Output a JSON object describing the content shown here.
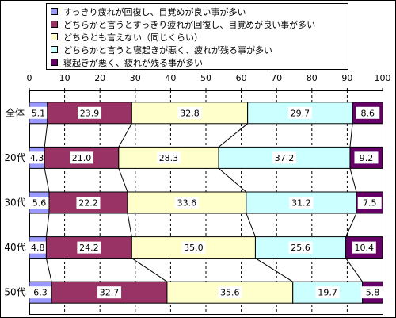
{
  "chart_data": {
    "type": "bar",
    "orientation": "horizontal",
    "stacked": true,
    "xlim": [
      0,
      100
    ],
    "x_ticks": [
      "0",
      "10",
      "20",
      "30",
      "40",
      "50",
      "60",
      "70",
      "80",
      "90",
      "100"
    ],
    "categories": [
      "全体",
      "20代",
      "30代",
      "40代",
      "50代"
    ],
    "series": [
      {
        "name": "すっきり疲れが回復し、目覚めが良い事が多い",
        "color": "#9999ff",
        "values": [
          5.1,
          4.3,
          5.6,
          4.8,
          6.3
        ]
      },
      {
        "name": "どちらかと言うとすっきり疲れが回復し、目覚めが良い事が多い",
        "color": "#993366",
        "values": [
          23.9,
          21.0,
          22.2,
          24.2,
          32.7
        ]
      },
      {
        "name": "どちらとも言えない（同じくらい）",
        "color": "#ffffcc",
        "values": [
          32.8,
          28.3,
          33.6,
          35.0,
          35.6
        ]
      },
      {
        "name": "どちらかと言うと寝起きが悪く、疲れが残る事が多い",
        "color": "#ccffff",
        "values": [
          29.7,
          37.2,
          31.2,
          25.6,
          19.7
        ]
      },
      {
        "name": "寝起きが悪く、疲れが残る事が多い",
        "color": "#660066",
        "values": [
          8.6,
          9.2,
          7.5,
          10.4,
          5.8
        ]
      }
    ],
    "gridlines": true,
    "legend_position": "top"
  }
}
